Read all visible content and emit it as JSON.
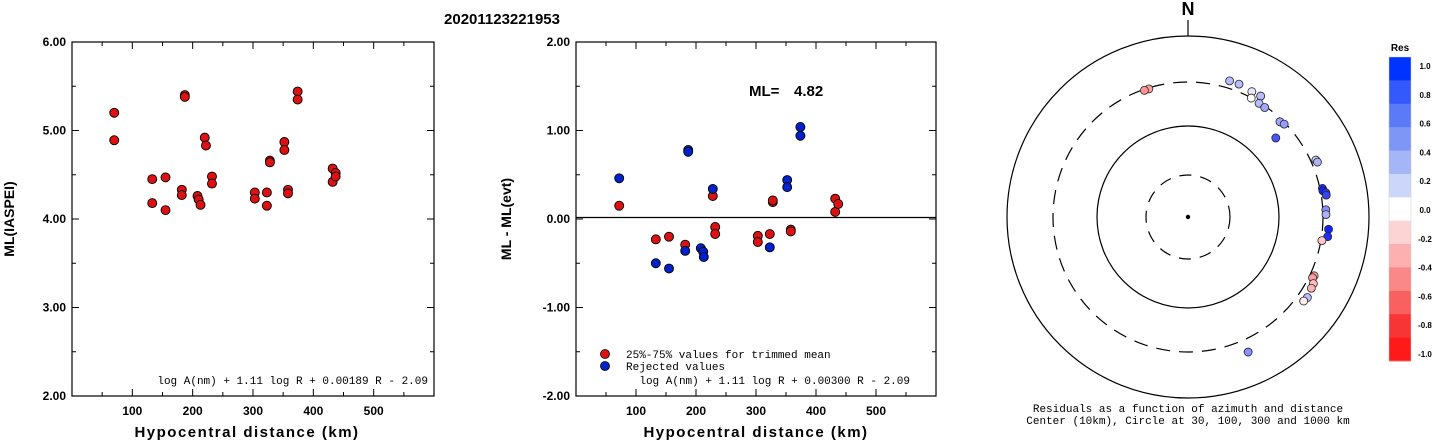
{
  "title": "20201123221953",
  "chart_data": [
    {
      "type": "scatter",
      "ylabel": "ML(IASPEI)",
      "xlabel": "Hypocentral distance (km)",
      "xlim": [
        0,
        600
      ],
      "ylim": [
        2.0,
        6.0
      ],
      "xticks": [
        "100",
        "200",
        "300",
        "400",
        "500"
      ],
      "yticks": [
        "2.00",
        "3.00",
        "4.00",
        "5.00",
        "6.00"
      ],
      "formula": "log A(nm) + 1.11 log R + 0.00189 R - 2.09",
      "marker_color": "#dd1111",
      "points": [
        [
          70,
          5.2
        ],
        [
          70,
          4.89
        ],
        [
          133,
          4.45
        ],
        [
          133,
          4.18
        ],
        [
          155,
          4.47
        ],
        [
          155,
          4.1
        ],
        [
          182,
          4.33
        ],
        [
          182,
          4.27
        ],
        [
          187,
          5.4
        ],
        [
          187,
          5.38
        ],
        [
          208,
          4.26
        ],
        [
          210,
          4.22
        ],
        [
          213,
          4.16
        ],
        [
          220,
          4.92
        ],
        [
          222,
          4.83
        ],
        [
          232,
          4.48
        ],
        [
          232,
          4.4
        ],
        [
          303,
          4.3
        ],
        [
          303,
          4.23
        ],
        [
          323,
          4.3
        ],
        [
          323,
          4.15
        ],
        [
          328,
          4.66
        ],
        [
          328,
          4.64
        ],
        [
          352,
          4.87
        ],
        [
          352,
          4.78
        ],
        [
          358,
          4.33
        ],
        [
          358,
          4.29
        ],
        [
          374,
          5.44
        ],
        [
          374,
          5.35
        ],
        [
          432,
          4.57
        ],
        [
          432,
          4.42
        ],
        [
          437,
          4.52
        ],
        [
          437,
          4.48
        ]
      ]
    },
    {
      "type": "scatter",
      "ylabel": "ML - ML(evt)",
      "xlabel": "Hypocentral distance (km)",
      "xlim": [
        0,
        600
      ],
      "ylim": [
        -2.0,
        2.0
      ],
      "xticks": [
        "100",
        "200",
        "300",
        "400",
        "500"
      ],
      "yticks": [
        "-2.00",
        "-1.00",
        "0.00",
        "1.00",
        "2.00"
      ],
      "ml_label": "ML=",
      "ml_value": "4.82",
      "formula": "log A(nm) + 1.11 log R + 0.00300 R - 2.09",
      "legend": [
        {
          "label": "25%-75% values for trimmed mean",
          "color": "#dd1111"
        },
        {
          "label": "Rejected values",
          "color": "#0022cc"
        }
      ],
      "series": [
        {
          "color": "#dd1111",
          "points": [
            [
              72,
              0.15
            ],
            [
              133,
              -0.23
            ],
            [
              155,
              -0.2
            ],
            [
              182,
              -0.29
            ],
            [
              228,
              0.26
            ],
            [
              232,
              -0.09
            ],
            [
              232,
              -0.17
            ],
            [
              303,
              -0.19
            ],
            [
              303,
              -0.26
            ],
            [
              323,
              -0.17
            ],
            [
              328,
              0.19
            ],
            [
              328,
              0.21
            ],
            [
              358,
              -0.12
            ],
            [
              358,
              -0.14
            ],
            [
              432,
              0.23
            ],
            [
              432,
              0.08
            ],
            [
              437,
              0.17
            ]
          ]
        },
        {
          "color": "#0022cc",
          "points": [
            [
              72,
              0.46
            ],
            [
              133,
              -0.5
            ],
            [
              155,
              -0.56
            ],
            [
              182,
              -0.36
            ],
            [
              187,
              0.78
            ],
            [
              187,
              0.76
            ],
            [
              208,
              -0.33
            ],
            [
              212,
              -0.37
            ],
            [
              213,
              -0.43
            ],
            [
              228,
              0.34
            ],
            [
              323,
              -0.32
            ],
            [
              352,
              0.44
            ],
            [
              352,
              0.36
            ],
            [
              374,
              1.04
            ],
            [
              374,
              0.94
            ]
          ]
        }
      ]
    },
    {
      "type": "scatter",
      "subtype": "polar",
      "north_label": "N",
      "caption_line1": "Residuals as a function of azimuth and distance",
      "caption_line2": "Center (10km), Circle at 30, 100, 300 and 1000 km",
      "colorbar_title": "Res",
      "colorbar_ticks": [
        "1.0",
        "0.8",
        "0.6",
        "0.4",
        "0.2",
        "0.0",
        "-0.2",
        "-0.4",
        "-0.6",
        "-0.8",
        "-1.0"
      ],
      "colorbar_colors": [
        "#0033ff",
        "#3358fb",
        "#5a7af8",
        "#7e97f6",
        "#a4b5f8",
        "#ccd6fa",
        "#ffffff",
        "#fdd4d4",
        "#fcb0b0",
        "#fb8888",
        "#f96060",
        "#f73535",
        "#ff1a1a"
      ],
      "points": [
        {
          "az": 17,
          "dist": 374,
          "res": 0.3
        },
        {
          "az": 21,
          "dist": 374,
          "res": 0.3
        },
        {
          "az": 27,
          "dist": 358,
          "res": 0.1
        },
        {
          "az": 31,
          "dist": 362,
          "res": 0.3
        },
        {
          "az": 28,
          "dist": 308,
          "res": 0.0
        },
        {
          "az": 32,
          "dist": 303,
          "res": 0.3
        },
        {
          "az": 35,
          "dist": 300,
          "res": 0.4
        },
        {
          "az": 44,
          "dist": 290,
          "res": 0.4
        },
        {
          "az": 46,
          "dist": 300,
          "res": 0.45
        },
        {
          "az": 48,
          "dist": 202,
          "res": 0.78
        },
        {
          "az": 66,
          "dist": 352,
          "res": 0.2
        },
        {
          "az": 67,
          "dist": 358,
          "res": 0.35
        },
        {
          "az": 78,
          "dist": 330,
          "res": 0.95
        },
        {
          "az": 79,
          "dist": 330,
          "res": 1.0
        },
        {
          "az": 80,
          "dist": 352,
          "res": 0.9
        },
        {
          "az": 81,
          "dist": 352,
          "res": 0.85
        },
        {
          "az": 87,
          "dist": 335,
          "res": 0.5
        },
        {
          "az": 89,
          "dist": 335,
          "res": 0.35
        },
        {
          "az": 95,
          "dist": 362,
          "res": 1.0
        },
        {
          "az": 98,
          "dist": 362,
          "res": 0.95
        },
        {
          "az": 100,
          "dist": 318,
          "res": -0.26
        },
        {
          "az": 115,
          "dist": 345,
          "res": -0.4
        },
        {
          "az": 116,
          "dist": 340,
          "res": -0.45
        },
        {
          "az": 118,
          "dist": 370,
          "res": -0.3
        },
        {
          "az": 120,
          "dist": 375,
          "res": -0.35
        },
        {
          "az": 124,
          "dist": 390,
          "res": 0.3
        },
        {
          "az": 126,
          "dist": 380,
          "res": -0.1
        },
        {
          "az": 156,
          "dist": 430,
          "res": 0.5
        },
        {
          "az": -17,
          "dist": 302,
          "res": -0.45
        },
        {
          "az": -19,
          "dist": 302,
          "res": -0.5
        }
      ]
    }
  ]
}
